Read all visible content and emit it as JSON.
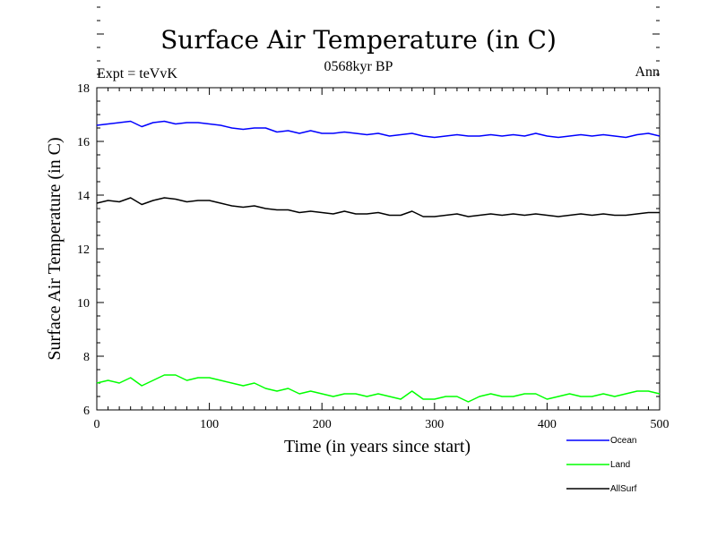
{
  "chart_data": {
    "type": "line",
    "title": "Surface Air Temperature (in C)",
    "subtitle": "0568kyr BP",
    "experiment_label": "Expt = teVvK",
    "season_label": "Ann",
    "xlabel": "Time (in years since start)",
    "ylabel": "Surface Air Temperature (in C)",
    "xlim": [
      0,
      500
    ],
    "ylim": [
      6,
      18
    ],
    "x_ticks": [
      0,
      100,
      200,
      300,
      400,
      500
    ],
    "y_ticks": [
      6,
      8,
      10,
      12,
      14,
      16,
      18
    ],
    "grid": false,
    "legend_position": "bottom-right, below plot",
    "series": [
      {
        "name": "Ocean",
        "color": "#0000ff",
        "x": [
          0,
          10,
          20,
          30,
          40,
          50,
          60,
          70,
          80,
          90,
          100,
          110,
          120,
          130,
          140,
          150,
          160,
          170,
          180,
          190,
          200,
          210,
          220,
          230,
          240,
          250,
          260,
          270,
          280,
          290,
          300,
          310,
          320,
          330,
          340,
          350,
          360,
          370,
          380,
          390,
          400,
          410,
          420,
          430,
          440,
          450,
          460,
          470,
          480,
          490,
          500
        ],
        "values": [
          16.6,
          16.65,
          16.7,
          16.75,
          16.55,
          16.7,
          16.75,
          16.65,
          16.7,
          16.7,
          16.65,
          16.6,
          16.5,
          16.45,
          16.5,
          16.5,
          16.35,
          16.4,
          16.3,
          16.4,
          16.3,
          16.3,
          16.35,
          16.3,
          16.25,
          16.3,
          16.2,
          16.25,
          16.3,
          16.2,
          16.15,
          16.2,
          16.25,
          16.2,
          16.2,
          16.25,
          16.2,
          16.25,
          16.2,
          16.3,
          16.2,
          16.15,
          16.2,
          16.25,
          16.2,
          16.25,
          16.2,
          16.15,
          16.25,
          16.3,
          16.2
        ]
      },
      {
        "name": "Land",
        "color": "#00ff00",
        "x": [
          0,
          10,
          20,
          30,
          40,
          50,
          60,
          70,
          80,
          90,
          100,
          110,
          120,
          130,
          140,
          150,
          160,
          170,
          180,
          190,
          200,
          210,
          220,
          230,
          240,
          250,
          260,
          270,
          280,
          290,
          300,
          310,
          320,
          330,
          340,
          350,
          360,
          370,
          380,
          390,
          400,
          410,
          420,
          430,
          440,
          450,
          460,
          470,
          480,
          490,
          500
        ],
        "values": [
          7.0,
          7.1,
          7.0,
          7.2,
          6.9,
          7.1,
          7.3,
          7.3,
          7.1,
          7.2,
          7.2,
          7.1,
          7.0,
          6.9,
          7.0,
          6.8,
          6.7,
          6.8,
          6.6,
          6.7,
          6.6,
          6.5,
          6.6,
          6.6,
          6.5,
          6.6,
          6.5,
          6.4,
          6.7,
          6.4,
          6.4,
          6.5,
          6.5,
          6.3,
          6.5,
          6.6,
          6.5,
          6.5,
          6.6,
          6.6,
          6.4,
          6.5,
          6.6,
          6.5,
          6.5,
          6.6,
          6.5,
          6.6,
          6.7,
          6.7,
          6.6
        ]
      },
      {
        "name": "AllSurf",
        "color": "#000000",
        "x": [
          0,
          10,
          20,
          30,
          40,
          50,
          60,
          70,
          80,
          90,
          100,
          110,
          120,
          130,
          140,
          150,
          160,
          170,
          180,
          190,
          200,
          210,
          220,
          230,
          240,
          250,
          260,
          270,
          280,
          290,
          300,
          310,
          320,
          330,
          340,
          350,
          360,
          370,
          380,
          390,
          400,
          410,
          420,
          430,
          440,
          450,
          460,
          470,
          480,
          490,
          500
        ],
        "values": [
          13.7,
          13.8,
          13.75,
          13.9,
          13.65,
          13.8,
          13.9,
          13.85,
          13.75,
          13.8,
          13.8,
          13.7,
          13.6,
          13.55,
          13.6,
          13.5,
          13.45,
          13.45,
          13.35,
          13.4,
          13.35,
          13.3,
          13.4,
          13.3,
          13.3,
          13.35,
          13.25,
          13.25,
          13.4,
          13.2,
          13.2,
          13.25,
          13.3,
          13.2,
          13.25,
          13.3,
          13.25,
          13.3,
          13.25,
          13.3,
          13.25,
          13.2,
          13.25,
          13.3,
          13.25,
          13.3,
          13.25,
          13.25,
          13.3,
          13.35,
          13.35
        ]
      }
    ]
  }
}
